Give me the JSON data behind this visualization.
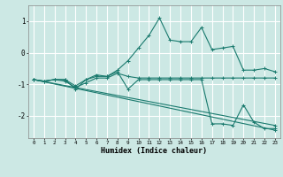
{
  "xlabel": "Humidex (Indice chaleur)",
  "bg_color": "#cce8e4",
  "line_color": "#1a7a6e",
  "grid_color": "#ffffff",
  "xlim": [
    -0.5,
    23.5
  ],
  "ylim": [
    -2.7,
    1.5
  ],
  "yticks": [
    -2,
    -1,
    0,
    1
  ],
  "xticks": [
    0,
    1,
    2,
    3,
    4,
    5,
    6,
    7,
    8,
    9,
    10,
    11,
    12,
    13,
    14,
    15,
    16,
    17,
    18,
    19,
    20,
    21,
    22,
    23
  ],
  "series": [
    {
      "x": [
        0,
        1,
        2,
        3,
        4,
        5,
        6,
        7,
        8,
        9,
        10,
        11,
        12,
        13,
        14,
        15,
        16,
        17,
        18,
        19,
        20,
        21,
        22,
        23
      ],
      "y": [
        -0.85,
        -0.9,
        -0.85,
        -0.85,
        -1.05,
        -0.85,
        -0.7,
        -0.75,
        -0.55,
        -0.25,
        0.15,
        0.55,
        1.1,
        0.4,
        0.35,
        0.35,
        0.8,
        0.1,
        0.15,
        0.2,
        -0.55,
        -0.55,
        -0.5,
        -0.6
      ]
    },
    {
      "x": [
        0,
        1,
        2,
        3,
        4,
        5,
        6,
        7,
        8,
        9,
        10,
        11,
        12,
        13,
        14,
        15,
        16,
        17,
        18,
        19,
        20,
        21,
        22,
        23
      ],
      "y": [
        -0.85,
        -0.9,
        -0.85,
        -0.9,
        -1.1,
        -0.95,
        -0.8,
        -0.8,
        -0.65,
        -0.75,
        -0.8,
        -0.8,
        -0.8,
        -0.8,
        -0.8,
        -0.8,
        -0.8,
        -0.8,
        -0.8,
        -0.8,
        -0.8,
        -0.8,
        -0.8,
        -0.8
      ]
    },
    {
      "x": [
        0,
        23
      ],
      "y": [
        -0.85,
        -2.3
      ]
    },
    {
      "x": [
        0,
        23
      ],
      "y": [
        -0.85,
        -2.45
      ]
    },
    {
      "x": [
        0,
        1,
        2,
        3,
        4,
        5,
        6,
        7,
        8,
        9,
        10,
        11,
        12,
        13,
        14,
        15,
        16,
        17,
        18,
        19,
        20,
        21,
        22,
        23
      ],
      "y": [
        -0.85,
        -0.9,
        -0.85,
        -0.85,
        -1.15,
        -0.85,
        -0.75,
        -0.75,
        -0.6,
        -1.15,
        -0.85,
        -0.85,
        -0.85,
        -0.85,
        -0.85,
        -0.85,
        -0.85,
        -2.25,
        -2.25,
        -2.3,
        -1.65,
        -2.2,
        -2.4,
        -2.4
      ]
    }
  ]
}
